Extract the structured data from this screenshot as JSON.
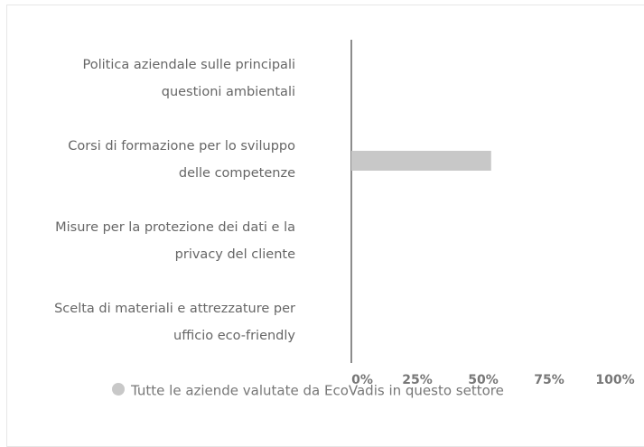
{
  "chart_data": {
    "type": "bar",
    "orientation": "horizontal",
    "categories": [
      "Politica aziendale sulle principali questioni ambientali",
      "Corsi di formazione per lo sviluppo delle competenze",
      "Misure per la protezione dei dati e la privacy del cliente",
      "Scelta di materiali e attrezzature per ufficio eco-friendly"
    ],
    "series": [
      {
        "name": "Tutte le aziende valutate da EcoVadis in questo settore",
        "color": "#c8c8c8",
        "values": [
          0,
          53,
          0,
          0
        ]
      }
    ],
    "xlim": [
      0,
      100
    ],
    "xticks": [
      {
        "value": 0,
        "label": "0%"
      },
      {
        "value": 25,
        "label": "25%"
      },
      {
        "value": 50,
        "label": "50%"
      },
      {
        "value": 75,
        "label": "75%"
      },
      {
        "value": 100,
        "label": "100%"
      }
    ],
    "legend": "bottom"
  }
}
